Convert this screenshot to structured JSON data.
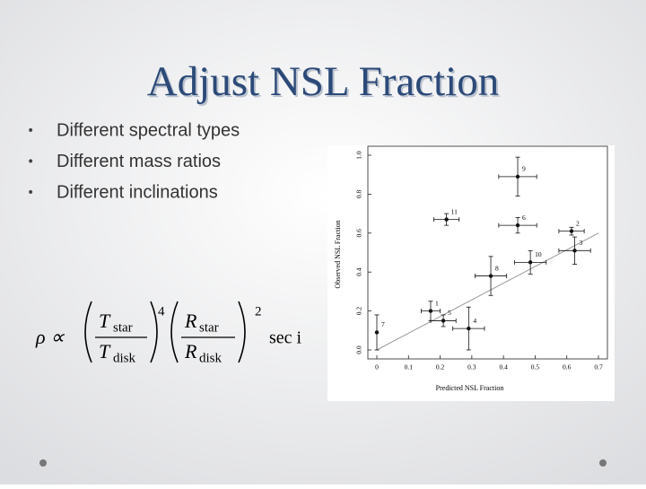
{
  "slide": {
    "title": "Adjust NSL Fraction",
    "bullets": [
      "Different spectral types",
      "Different mass ratios",
      "Different inclinations"
    ],
    "formula": {
      "lhs": "ρ ∝",
      "fraction1": {
        "numerator": "T",
        "numerator_sub": "star",
        "denominator": "T",
        "denominator_sub": "disk",
        "exponent": "4"
      },
      "fraction2": {
        "numerator": "R",
        "numerator_sub": "star",
        "denominator": "R",
        "denominator_sub": "disk",
        "exponent": "2"
      },
      "tail": "sec i"
    }
  },
  "chart_data": {
    "type": "scatter",
    "x_label": "Predicted NSL Fraction",
    "y_label": "Observed NSL Fraction",
    "xlim": [
      0,
      0.7
    ],
    "ylim": [
      0,
      1.0
    ],
    "xticks": [
      0,
      0.1,
      0.2,
      0.3,
      0.4,
      0.5,
      0.6,
      0.7
    ],
    "yticks": [
      {
        "value": 0,
        "label": "0.0"
      },
      0.2,
      0.4,
      0.6,
      0.8,
      {
        "value": 1.0,
        "label": "1.0"
      }
    ],
    "series": [
      {
        "color": "#111111",
        "x": [
          0.0,
          0.17,
          0.21,
          0.29,
          0.36,
          0.22,
          0.445,
          0.445,
          0.485,
          0.615,
          0.625
        ],
        "values": [
          0.09,
          0.2,
          0.15,
          0.11,
          0.38,
          0.67,
          0.89,
          0.64,
          0.45,
          0.61,
          0.51
        ],
        "xerr": [
          0.0,
          0.03,
          0.04,
          0.05,
          0.05,
          0.04,
          0.06,
          0.06,
          0.05,
          0.04,
          0.05
        ],
        "yerr": [
          0.09,
          0.05,
          0.03,
          0.11,
          0.1,
          0.03,
          0.1,
          0.04,
          0.06,
          0.02,
          0.07
        ],
        "point_labels": [
          "7",
          "1",
          "5",
          "4",
          "8",
          "11",
          "9",
          "6",
          "10",
          "2",
          "3"
        ]
      }
    ],
    "fit_line": {
      "color": "#999999",
      "x": [
        0,
        0.7
      ],
      "values": [
        0.0,
        0.6
      ]
    }
  }
}
